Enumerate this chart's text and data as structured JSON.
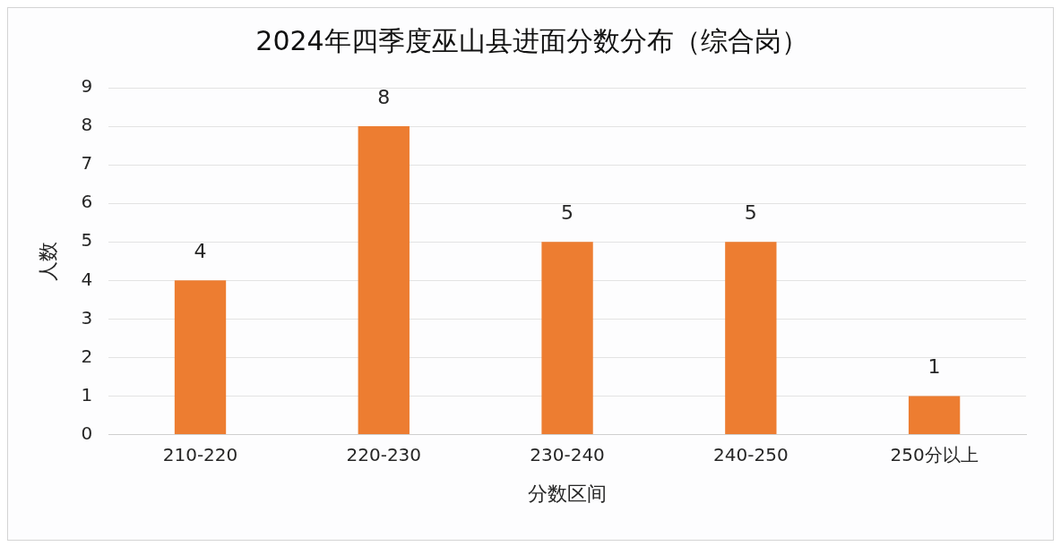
{
  "chart_data": {
    "type": "bar",
    "title": "2024年四季度巫山县进面分数分布（综合岗）",
    "xlabel": "分数区间",
    "ylabel": "人数",
    "categories": [
      "210-220",
      "220-230",
      "230-240",
      "240-250",
      "250分以上"
    ],
    "values": [
      4,
      8,
      5,
      5,
      1
    ],
    "color": "#ed7d31",
    "ylim": [
      0,
      9
    ],
    "yticks": [
      0,
      1,
      2,
      3,
      4,
      5,
      6,
      7,
      8,
      9
    ],
    "grid": "y",
    "data_labels": true
  }
}
